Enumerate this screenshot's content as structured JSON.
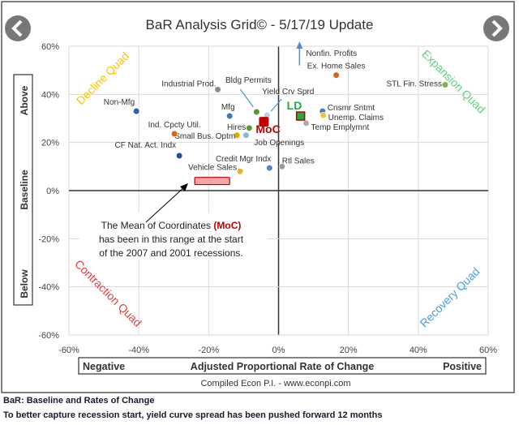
{
  "nav": {
    "prev_icon": "chevron-left-icon",
    "next_icon": "chevron-right-icon"
  },
  "chart_data": {
    "type": "scatter",
    "title": "BaR Analysis Grid© - 5/17/19 Update",
    "xlabel": "Adjusted Proportional Rate of Change",
    "xlabel_left": "Negative",
    "xlabel_right": "Positive",
    "ylabel_top": "Above",
    "ylabel_mid": "Baseline",
    "ylabel_bottom": "Below",
    "xlim": [
      -60,
      60
    ],
    "ylim": [
      -60,
      60
    ],
    "x_ticks": [
      "-60%",
      "-40%",
      "-20%",
      "0%",
      "20%",
      "40%",
      "60%"
    ],
    "y_ticks": [
      "60%",
      "40%",
      "20%",
      "0%",
      "-20%",
      "-40%",
      "-60%"
    ],
    "grid": true,
    "quadrants": {
      "decline": {
        "label": "Decline Quad",
        "color": "#ffc000"
      },
      "expansion": {
        "label": "Expansion Quad",
        "color": "#5fcf80"
      },
      "contraction": {
        "label": "Contraction Quad",
        "color": "#e04040"
      },
      "recovery": {
        "label": "Recovery Quad",
        "color": "#4a9de0"
      }
    },
    "points": [
      {
        "name": "Industrial Prod.",
        "x": -17.4,
        "y": 42,
        "color": "#8c8c8c"
      },
      {
        "name": "Non-Mfg",
        "x": -40.7,
        "y": 33,
        "color": "#2f5fb0"
      },
      {
        "name": "Mfg",
        "x": -14,
        "y": 31,
        "color": "#3a78c8"
      },
      {
        "name": "Bldg Permits",
        "x": -6.3,
        "y": 32.7,
        "color": "#4e9a2e"
      },
      {
        "name": "Yield Crv Sprd",
        "x": -3.3,
        "y": 31.3,
        "color": "#b7d2f0"
      },
      {
        "name": "Hires",
        "x": -8.4,
        "y": 26,
        "color": "#5a9a30"
      },
      {
        "name": "Job Openings",
        "x": -9.3,
        "y": 23,
        "color": "#8ab4e8"
      },
      {
        "name": "Small Bus. Optm",
        "x": -11.9,
        "y": 23,
        "color": "#e0a800"
      },
      {
        "name": "Ind. Cpcty Util.",
        "x": -29.8,
        "y": 23.6,
        "color": "#d0681e"
      },
      {
        "name": "CF Nat. Act. Indx",
        "x": -28.4,
        "y": 14.5,
        "color": "#2a4fa0"
      },
      {
        "name": "Credit Mgr Indx",
        "x": -2.6,
        "y": 9.4,
        "color": "#5b7fd6"
      },
      {
        "name": "Vehicle Sales",
        "x": -11,
        "y": 8,
        "color": "#e6b422"
      },
      {
        "name": "Rtl Sales",
        "x": 1,
        "y": 10,
        "color": "#999999"
      },
      {
        "name": "Temp Emplymnt",
        "x": 7.9,
        "y": 28,
        "color": "#aaaaaa"
      },
      {
        "name": "Cnsmr Sntmt",
        "x": 12.6,
        "y": 33,
        "color": "#3d7cc9"
      },
      {
        "name": "Unemp. Claims",
        "x": 12.8,
        "y": 31.3,
        "color": "#f4c430"
      },
      {
        "name": "Ex. Home Sales",
        "x": 16.5,
        "y": 48,
        "color": "#d5651f"
      },
      {
        "name": "STL Fin. Stress",
        "x": 47.7,
        "y": 44,
        "color": "#7ab648"
      }
    ],
    "offchart_point": {
      "name": "Nonfin. Profits",
      "x": 6,
      "direction": "up"
    },
    "moc": {
      "name": "MoC",
      "x": -4.2,
      "y": 28.6,
      "color": "#c00000"
    },
    "ld": {
      "name": "LD",
      "x": 6.3,
      "y": 31,
      "color": "#22aa44"
    },
    "recession_range": {
      "x": [
        -24,
        -14
      ],
      "y": [
        2.5,
        5.5
      ],
      "color": "#f4a6a6"
    },
    "annotation": {
      "line1_pre": "The Mean of Coordinates ",
      "line1_hl": "(MoC)",
      "line2": "has been in this range at the start",
      "line3": "of the 2007 and 2001 recessions."
    },
    "credit": "Compiled Econ P.I. - www.econpi.com"
  },
  "footer": {
    "line1": "BaR: Baseline and Rates of Change",
    "line2": "To better capture recession start, yield curve spread has been pushed forward 12 months"
  }
}
